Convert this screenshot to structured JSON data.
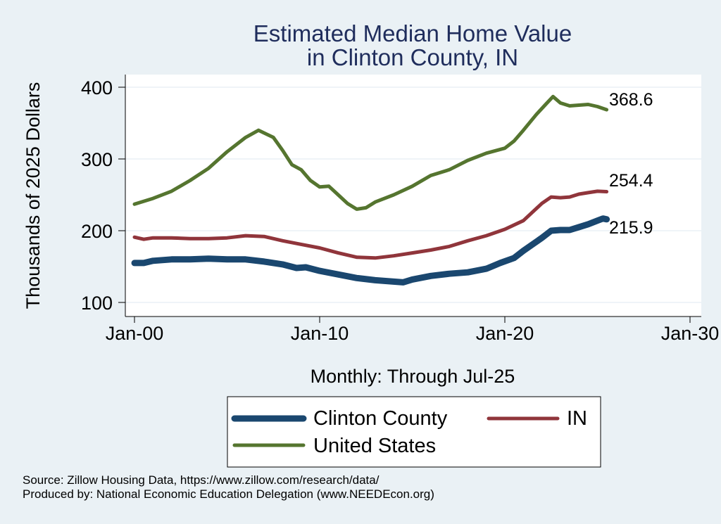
{
  "chart_data": {
    "type": "line",
    "title": [
      "Estimated Median Home Value",
      "in Clinton County, IN"
    ],
    "ylabel": "Thousands of 2025 Dollars",
    "xlabel": "Monthly: Through Jul-25",
    "x_ticks": [
      "Jan-00",
      "Jan-10",
      "Jan-20",
      "Jan-30"
    ],
    "y_ticks": [
      100,
      200,
      300,
      400
    ],
    "ylim": [
      90,
      410
    ],
    "xlim": [
      2000,
      2030
    ],
    "grid": "horizontal",
    "series": [
      {
        "name": "Clinton County",
        "color": "#1a476f",
        "end_label": "215.9",
        "points": [
          [
            2000.0,
            155
          ],
          [
            2000.5,
            155
          ],
          [
            2001,
            158
          ],
          [
            2002,
            160
          ],
          [
            2003,
            160
          ],
          [
            2004,
            161
          ],
          [
            2005,
            160
          ],
          [
            2006,
            160
          ],
          [
            2007,
            157
          ],
          [
            2008,
            153
          ],
          [
            2008.75,
            148
          ],
          [
            2009.25,
            149
          ],
          [
            2010,
            144
          ],
          [
            2011,
            139
          ],
          [
            2012,
            134
          ],
          [
            2013,
            131
          ],
          [
            2014,
            129
          ],
          [
            2014.5,
            128
          ],
          [
            2015,
            132
          ],
          [
            2016,
            137
          ],
          [
            2017,
            140
          ],
          [
            2018,
            142
          ],
          [
            2019,
            147
          ],
          [
            2019.75,
            155
          ],
          [
            2020.5,
            162
          ],
          [
            2021,
            172
          ],
          [
            2022,
            190
          ],
          [
            2022.5,
            200
          ],
          [
            2023,
            201
          ],
          [
            2023.5,
            201
          ],
          [
            2024,
            205
          ],
          [
            2024.5,
            209
          ],
          [
            2025,
            214
          ],
          [
            2025.3,
            217
          ],
          [
            2025.5,
            215.9
          ]
        ]
      },
      {
        "name": "IN",
        "color": "#90353b",
        "end_label": "254.4",
        "points": [
          [
            2000.0,
            191
          ],
          [
            2000.5,
            188
          ],
          [
            2001,
            190
          ],
          [
            2002,
            190
          ],
          [
            2003,
            189
          ],
          [
            2004,
            189
          ],
          [
            2005,
            190
          ],
          [
            2006,
            193
          ],
          [
            2007,
            192
          ],
          [
            2008,
            186
          ],
          [
            2009,
            181
          ],
          [
            2010,
            176
          ],
          [
            2011,
            169
          ],
          [
            2012,
            163
          ],
          [
            2013,
            162
          ],
          [
            2014,
            165
          ],
          [
            2015,
            169
          ],
          [
            2016,
            173
          ],
          [
            2017,
            178
          ],
          [
            2018,
            186
          ],
          [
            2019,
            193
          ],
          [
            2020,
            202
          ],
          [
            2021,
            214
          ],
          [
            2022,
            238
          ],
          [
            2022.5,
            247
          ],
          [
            2023,
            246
          ],
          [
            2023.5,
            247
          ],
          [
            2024,
            251
          ],
          [
            2024.5,
            253
          ],
          [
            2025,
            255
          ],
          [
            2025.5,
            254.4
          ]
        ]
      },
      {
        "name": "United States",
        "color": "#55752f",
        "end_label": "368.6",
        "points": [
          [
            2000.0,
            237
          ],
          [
            2001,
            245
          ],
          [
            2002,
            255
          ],
          [
            2003,
            270
          ],
          [
            2004,
            287
          ],
          [
            2005,
            310
          ],
          [
            2006,
            330
          ],
          [
            2006.7,
            340
          ],
          [
            2007.5,
            330
          ],
          [
            2008,
            312
          ],
          [
            2008.5,
            292
          ],
          [
            2009,
            285
          ],
          [
            2009.5,
            270
          ],
          [
            2010,
            261
          ],
          [
            2010.5,
            262
          ],
          [
            2011,
            250
          ],
          [
            2011.5,
            238
          ],
          [
            2012,
            230
          ],
          [
            2012.5,
            232
          ],
          [
            2013,
            240
          ],
          [
            2014,
            250
          ],
          [
            2015,
            262
          ],
          [
            2016,
            277
          ],
          [
            2017,
            285
          ],
          [
            2018,
            298
          ],
          [
            2019,
            308
          ],
          [
            2020,
            315
          ],
          [
            2020.5,
            325
          ],
          [
            2021,
            340
          ],
          [
            2021.7,
            362
          ],
          [
            2022.2,
            376
          ],
          [
            2022.6,
            387
          ],
          [
            2023,
            378
          ],
          [
            2023.5,
            374
          ],
          [
            2024,
            375
          ],
          [
            2024.5,
            376
          ],
          [
            2025,
            373
          ],
          [
            2025.5,
            368.6
          ]
        ]
      }
    ],
    "legend": {
      "entries": [
        "Clinton County",
        "IN",
        "United States"
      ],
      "placement": "bottom"
    }
  },
  "notes": {
    "source": "Source: Zillow Housing Data, https://www.zillow.com/research/data/",
    "produced_by": "Produced by: National Economic Education Delegation (www.NEEDEcon.org)"
  }
}
